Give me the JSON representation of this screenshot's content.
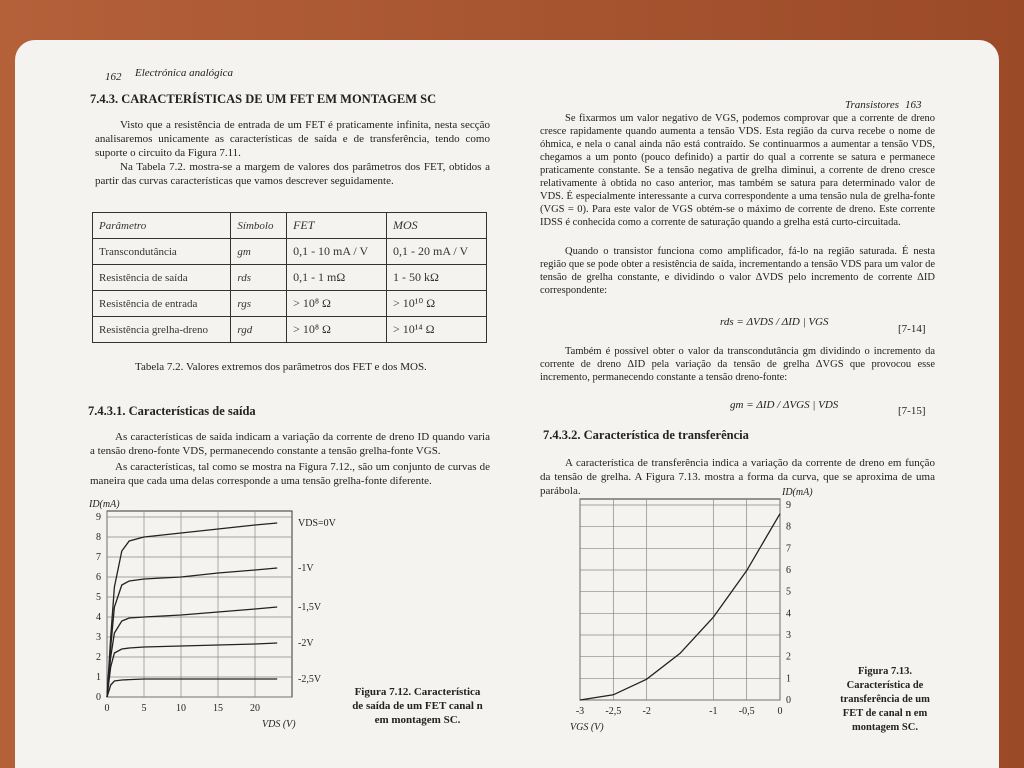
{
  "left_page": {
    "page_number": "162",
    "running_head": "Electrónica analógica",
    "section_title": "7.4.3. CARACTERÍSTICAS DE UM FET EM MONTAGEM SC",
    "paragraphs": [
      "Visto que a resistência de entrada de um FET é praticamente infinita, nesta secção analisaremos unicamente as características de saída e de transferência, tendo como suporte o circuito da Figura 7.11.",
      "Na Tabela 7.2. mostra-se a margem de valores dos parâmetros dos FET, obtidos a partir das curvas características que vamos descrever seguidamente."
    ],
    "table": {
      "header": [
        "Parâmetro",
        "Símbolo",
        "FET",
        "MOS"
      ],
      "rows": [
        [
          "Transcondutância",
          "gm",
          "0,1 - 10 mA / V",
          "0,1 - 20 mA / V"
        ],
        [
          "Resistência de saída",
          "rds",
          "0,1 - 1 mΩ",
          "1 - 50 kΩ"
        ],
        [
          "Resistência de entrada",
          "rgs",
          "> 10⁸ Ω",
          "> 10¹⁰ Ω"
        ],
        [
          "Resistência grelha-dreno",
          "rgd",
          "> 10⁸ Ω",
          "> 10¹⁴ Ω"
        ]
      ],
      "caption": "Tabela 7.2. Valores extremos dos parâmetros dos FET e dos MOS."
    },
    "subsection_title": "7.4.3.1. Características de saída",
    "paragraphs_2": [
      "As características de saída indicam a variação da corrente de dreno ID quando varia a tensão dreno-fonte VDS, permanecendo constante a tensão grelha-fonte VGS.",
      "As características, tal como se mostra na Figura 7.12., são um conjunto de curvas de maneira que cada uma delas corresponde a uma tensão grelha-fonte diferente."
    ],
    "figure": {
      "caption": "Figura 7.12. Característica de saída de um FET canal n em montagem SC.",
      "y_label": "ID(mA)",
      "x_label": "VDS (V)",
      "xlim": [
        0,
        25
      ],
      "ylim": [
        0,
        9
      ],
      "xticks": [
        0,
        5,
        10,
        15,
        20
      ],
      "yticks": [
        0,
        1,
        2,
        3,
        4,
        5,
        6,
        7,
        8,
        9
      ],
      "x": [
        0,
        0.5,
        1,
        2,
        3,
        5,
        10,
        15,
        20,
        23
      ],
      "series": [
        {
          "name": "VDS=0V",
          "values": [
            0,
            3,
            5.5,
            7.3,
            7.8,
            8,
            8.2,
            8.4,
            8.6,
            8.7
          ]
        },
        {
          "name": "-1V",
          "values": [
            0,
            2.5,
            4.5,
            5.6,
            5.8,
            5.9,
            6.0,
            6.2,
            6.35,
            6.45
          ]
        },
        {
          "name": "-1,5V",
          "values": [
            0,
            2,
            3.2,
            3.8,
            3.95,
            4,
            4.1,
            4.25,
            4.4,
            4.5
          ]
        },
        {
          "name": "-2V",
          "values": [
            0,
            1.5,
            2.2,
            2.4,
            2.45,
            2.5,
            2.55,
            2.6,
            2.65,
            2.7
          ]
        },
        {
          "name": "-2,5V",
          "values": [
            0,
            0.6,
            0.8,
            0.85,
            0.87,
            0.9,
            0.9,
            0.9,
            0.9,
            0.9
          ]
        }
      ]
    }
  },
  "right_page": {
    "page_number": "163",
    "running_head": "Transistores",
    "paragraphs": [
      "Se fixarmos um valor negativo de VGS, podemos comprovar que a corrente de dreno cresce rapidamente quando aumenta a tensão VDS. Esta região da curva recebe o nome de óhmica, e nela o canal ainda não está contraído. Se continuarmos a aumentar a tensão VDS, chegamos a um ponto (pouco definido) a partir do qual a corrente se satura e permanece praticamente constante. Se a tensão negativa de grelha diminui, a corrente de dreno cresce relativamente à obtida no caso anterior, mas também se satura para determinado valor de VDS. É especialmente interessante a curva correspondente a uma tensão nula de grelha-fonte (VGS = 0). Para este valor de VGS obtém-se o máximo de corrente de dreno. Este corrente IDSS é conhecida como a corrente de saturação quando a grelha está curto-circuitada.",
      "Quando o transistor funciona como amplificador, fá-lo na região saturada. É nesta região que se pode obter a resistência de saída, incrementando a tensão VDS para um valor de tensão de grelha constante, e dividindo o valor ΔVDS pelo incremento de corrente ΔID correspondente:"
    ],
    "equation_1": {
      "text": "rds = ΔVDS / ΔID | VGS",
      "number": "[7-14]"
    },
    "paragraph_3": "Também é possível obter o valor da transcondutância gm dividindo o incremento da corrente de dreno ΔID pela variação da tensão de grelha ΔVGS que provocou esse incremento, permanecendo constante a tensão dreno-fonte:",
    "equation_2": {
      "text": "gm = ΔID / ΔVGS | VDS",
      "number": "[7-15]"
    },
    "subsection_title": "7.4.3.2. Característica de transferência",
    "paragraph_4": "A característica de transferência indica a variação da corrente de dreno em função da tensão de grelha. A Figura 7.13. mostra a forma da curva, que se aproxima de uma parábola.",
    "figure": {
      "caption": "Figura 7.13. Característica de transferência de um FET de canal n em montagem SC.",
      "y_label": "ID(mA)",
      "x_label": "VGS (V)",
      "xlim": [
        -3,
        0
      ],
      "ylim": [
        0,
        9
      ],
      "xticks": [
        -3,
        {
          "value": -2.5,
          "label": "-2,5"
        },
        -2,
        -1,
        {
          "value": -0.5,
          "label": "-0,5"
        },
        0
      ],
      "yticks": [
        0,
        1,
        2,
        3,
        4,
        5,
        6,
        7,
        8,
        9
      ],
      "x": [
        -3,
        -2.5,
        -2,
        -1.5,
        -1,
        -0.5,
        0
      ],
      "values": [
        0,
        0.24,
        0.96,
        2.15,
        3.82,
        5.97,
        8.6
      ]
    }
  }
}
